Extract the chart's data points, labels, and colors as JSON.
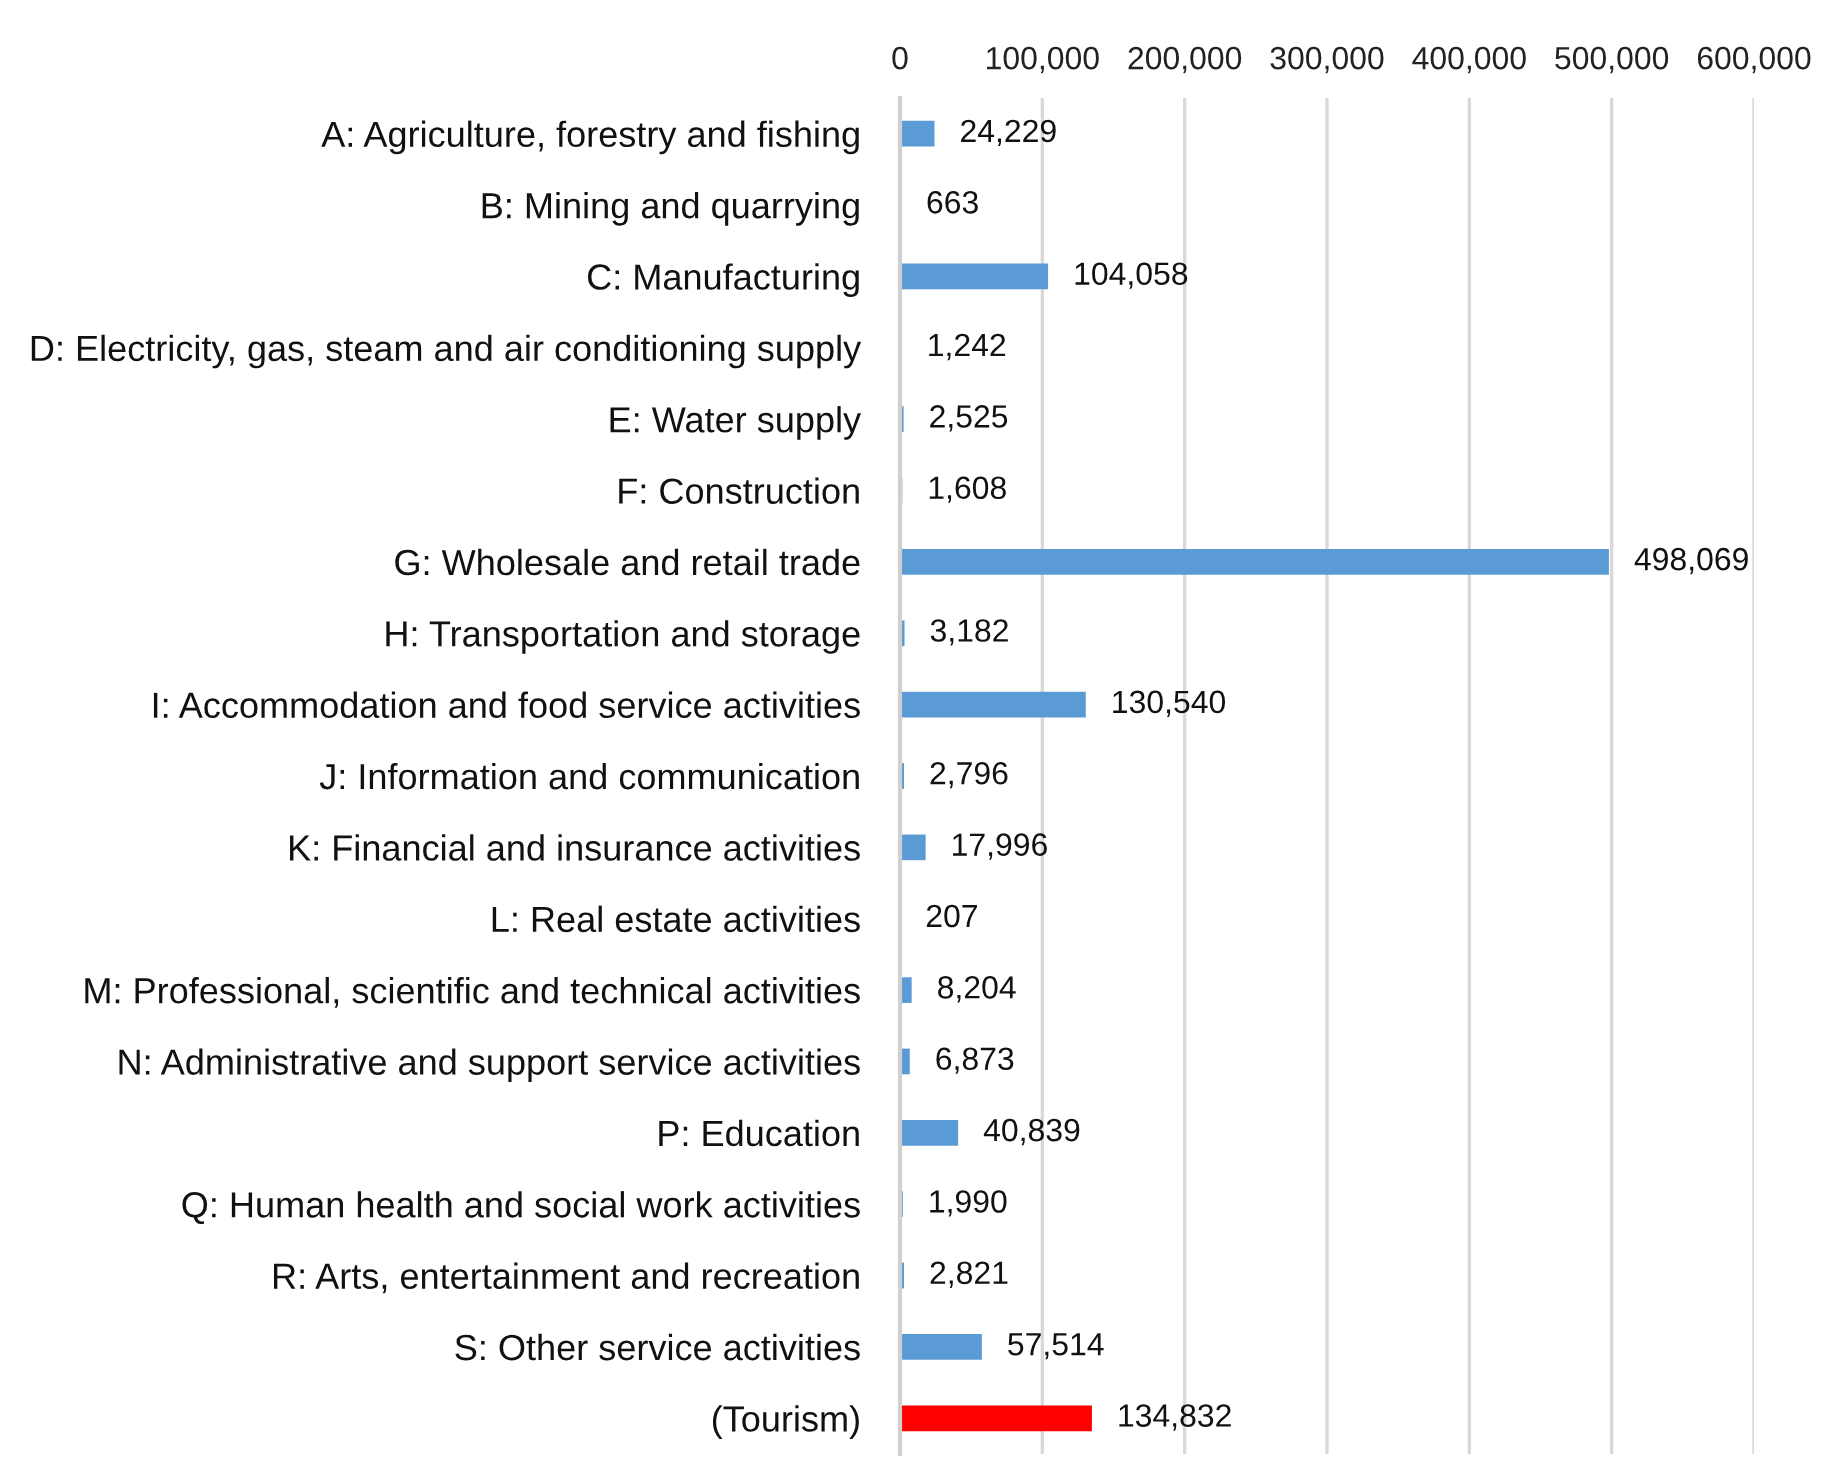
{
  "chart_data": {
    "type": "bar",
    "orientation": "horizontal",
    "categories": [
      "A: Agriculture, forestry and fishing",
      "B: Mining and quarrying",
      "C: Manufacturing",
      "D: Electricity, gas, steam and air conditioning supply",
      "E: Water supply",
      "F: Construction",
      "G: Wholesale and retail trade",
      "H: Transportation and storage",
      "I: Accommodation and food service activities",
      "J: Information and communication",
      "K: Financial and insurance activities",
      "L: Real estate activities",
      "M: Professional, scientific and technical activities",
      "N: Administrative and support service activities",
      "P: Education",
      "Q: Human health and social work activities",
      "R: Arts, entertainment and recreation",
      "S: Other service activities",
      "(Tourism)"
    ],
    "values": [
      24229,
      663,
      104058,
      1242,
      2525,
      1608,
      498069,
      3182,
      130540,
      2796,
      17996,
      207,
      8204,
      6873,
      40839,
      1990,
      2821,
      57514,
      134832
    ],
    "value_labels": [
      "24,229",
      "663",
      "104,058",
      "1,242",
      "2,525",
      "1,608",
      "498,069",
      "3,182",
      "130,540",
      "2,796",
      "17,996",
      "207",
      "8,204",
      "6,873",
      "40,839",
      "1,990",
      "2,821",
      "57,514",
      "134,832"
    ],
    "colors": [
      "#5b9bd5",
      "#5b9bd5",
      "#5b9bd5",
      "#5b9bd5",
      "#5b9bd5",
      "#5b9bd5",
      "#5b9bd5",
      "#5b9bd5",
      "#5b9bd5",
      "#5b9bd5",
      "#5b9bd5",
      "#5b9bd5",
      "#5b9bd5",
      "#5b9bd5",
      "#5b9bd5",
      "#5b9bd5",
      "#5b9bd5",
      "#5b9bd5",
      "#ff0000"
    ],
    "xlim": [
      0,
      600000
    ],
    "xticks": [
      {
        "value": 0,
        "label": "0"
      },
      {
        "value": 100000,
        "label": "100,000"
      },
      {
        "value": 200000,
        "label": "200,000"
      },
      {
        "value": 300000,
        "label": "300,000"
      },
      {
        "value": 400000,
        "label": "400,000"
      },
      {
        "value": 500000,
        "label": "500,000"
      },
      {
        "value": 600000,
        "label": "600,000"
      }
    ],
    "grid": "x",
    "legend": false
  }
}
